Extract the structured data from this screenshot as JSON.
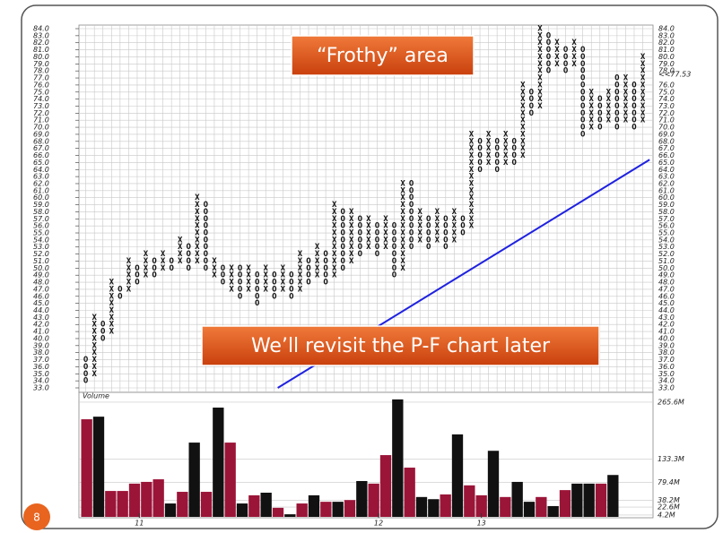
{
  "slide": {
    "number": "8"
  },
  "chart_data": [
    {
      "type": "point_and_figure",
      "box_size": 1,
      "x_color": "#111111",
      "o_color": "#111111",
      "ylim": [
        33,
        84
      ],
      "xlim": [
        -0.8,
        66.2
      ],
      "yticks": [
        {
          "value": 33,
          "label": "33.0"
        },
        {
          "value": 34,
          "label": "34.0"
        },
        {
          "value": 35,
          "label": "35.0"
        },
        {
          "value": 36,
          "label": "36.0"
        },
        {
          "value": 37,
          "label": "37.0"
        },
        {
          "value": 38,
          "label": "38.0"
        },
        {
          "value": 39,
          "label": "39.0"
        },
        {
          "value": 40,
          "label": "40.0"
        },
        {
          "value": 41,
          "label": "41.0"
        },
        {
          "value": 42,
          "label": "42.0"
        },
        {
          "value": 43,
          "label": "43.0"
        },
        {
          "value": 44,
          "label": "44.0"
        },
        {
          "value": 45,
          "label": "45.0"
        },
        {
          "value": 46,
          "label": "46.0"
        },
        {
          "value": 47,
          "label": "47.0"
        },
        {
          "value": 48,
          "label": "48.0"
        },
        {
          "value": 49,
          "label": "49.0"
        },
        {
          "value": 50,
          "label": "50.0"
        },
        {
          "value": 51,
          "label": "51.0"
        },
        {
          "value": 52,
          "label": "52.0"
        },
        {
          "value": 53,
          "label": "53.0"
        },
        {
          "value": 54,
          "label": "54.0"
        },
        {
          "value": 55,
          "label": "55.0"
        },
        {
          "value": 56,
          "label": "56.0"
        },
        {
          "value": 57,
          "label": "57.0"
        },
        {
          "value": 58,
          "label": "58.0"
        },
        {
          "value": 59,
          "label": "59.0"
        },
        {
          "value": 60,
          "label": "60.0"
        },
        {
          "value": 61,
          "label": "61.0"
        },
        {
          "value": 62,
          "label": "62.0"
        },
        {
          "value": 63,
          "label": "63.0"
        },
        {
          "value": 64,
          "label": "64.0"
        },
        {
          "value": 65,
          "label": "65.0"
        },
        {
          "value": 66,
          "label": "66.0"
        },
        {
          "value": 67,
          "label": "67.0"
        },
        {
          "value": 68,
          "label": "68.0"
        },
        {
          "value": 69,
          "label": "69.0"
        },
        {
          "value": 70,
          "label": "70.0"
        },
        {
          "value": 71,
          "label": "71.0"
        },
        {
          "value": 72,
          "label": "72.0"
        },
        {
          "value": 73,
          "label": "73.0"
        },
        {
          "value": 74,
          "label": "74.0"
        },
        {
          "value": 75,
          "label": "75.0"
        },
        {
          "value": 76,
          "label": "76.0"
        },
        {
          "value": 77,
          "label": "77.0"
        },
        {
          "value": 78,
          "label": "78.0"
        },
        {
          "value": 79,
          "label": "79.0"
        },
        {
          "value": 80,
          "label": "80.0"
        },
        {
          "value": 81,
          "label": "81.0"
        },
        {
          "value": 82,
          "label": "82.0"
        },
        {
          "value": 83,
          "label": "83.0"
        },
        {
          "value": 84,
          "label": "84.0"
        }
      ],
      "last_price": {
        "value": 77.53,
        "label": "<<77.53",
        "color": "#d0103a"
      },
      "columns": [
        {
          "type": "O",
          "low": 34,
          "high": 37
        },
        {
          "type": "X",
          "low": 35,
          "high": 43
        },
        {
          "type": "O",
          "low": 40,
          "high": 42
        },
        {
          "type": "X",
          "low": 41,
          "high": 48
        },
        {
          "type": "O",
          "low": 46,
          "high": 47
        },
        {
          "type": "X",
          "low": 47,
          "high": 51
        },
        {
          "type": "O",
          "low": 48,
          "high": 50
        },
        {
          "type": "X",
          "low": 49,
          "high": 52
        },
        {
          "type": "O",
          "low": 49,
          "high": 51
        },
        {
          "type": "X",
          "low": 50,
          "high": 52
        },
        {
          "type": "O",
          "low": 50,
          "high": 51
        },
        {
          "type": "X",
          "low": 51,
          "high": 54
        },
        {
          "type": "O",
          "low": 50,
          "high": 53
        },
        {
          "type": "X",
          "low": 51,
          "high": 60
        },
        {
          "type": "O",
          "low": 50,
          "high": 59
        },
        {
          "type": "X",
          "low": 49,
          "high": 51
        },
        {
          "type": "O",
          "low": 48,
          "high": 50
        },
        {
          "type": "X",
          "low": 47,
          "high": 50
        },
        {
          "type": "O",
          "low": 46,
          "high": 50
        },
        {
          "type": "X",
          "low": 47,
          "high": 50
        },
        {
          "type": "O",
          "low": 45,
          "high": 49
        },
        {
          "type": "X",
          "low": 47,
          "high": 50
        },
        {
          "type": "O",
          "low": 46,
          "high": 49
        },
        {
          "type": "X",
          "low": 47,
          "high": 50
        },
        {
          "type": "O",
          "low": 46,
          "high": 49
        },
        {
          "type": "X",
          "low": 47,
          "high": 52
        },
        {
          "type": "O",
          "low": 48,
          "high": 51
        },
        {
          "type": "X",
          "low": 49,
          "high": 53
        },
        {
          "type": "O",
          "low": 48,
          "high": 52
        },
        {
          "type": "X",
          "low": 49,
          "high": 59
        },
        {
          "type": "O",
          "low": 50,
          "high": 58
        },
        {
          "type": "X",
          "low": 51,
          "high": 58
        },
        {
          "type": "O",
          "low": 52,
          "high": 57
        },
        {
          "type": "X",
          "low": 53,
          "high": 57
        },
        {
          "type": "O",
          "low": 52,
          "high": 56
        },
        {
          "type": "X",
          "low": 53,
          "high": 57
        },
        {
          "type": "O",
          "low": 49,
          "high": 56
        },
        {
          "type": "X",
          "low": 50,
          "high": 62
        },
        {
          "type": "O",
          "low": 53,
          "high": 62
        },
        {
          "type": "X",
          "low": 54,
          "high": 58
        },
        {
          "type": "O",
          "low": 53,
          "high": 57
        },
        {
          "type": "X",
          "low": 54,
          "high": 58
        },
        {
          "type": "O",
          "low": 53,
          "high": 57
        },
        {
          "type": "X",
          "low": 54,
          "high": 58
        },
        {
          "type": "O",
          "low": 55,
          "high": 57
        },
        {
          "type": "X",
          "low": 56,
          "high": 69
        },
        {
          "type": "O",
          "low": 64,
          "high": 68
        },
        {
          "type": "X",
          "low": 65,
          "high": 69
        },
        {
          "type": "O",
          "low": 64,
          "high": 68
        },
        {
          "type": "X",
          "low": 65,
          "high": 69
        },
        {
          "type": "O",
          "low": 65,
          "high": 68
        },
        {
          "type": "X",
          "low": 66,
          "high": 76
        },
        {
          "type": "O",
          "low": 72,
          "high": 75
        },
        {
          "type": "X",
          "low": 73,
          "high": 84
        },
        {
          "type": "O",
          "low": 78,
          "high": 83
        },
        {
          "type": "X",
          "low": 79,
          "high": 82
        },
        {
          "type": "O",
          "low": 78,
          "high": 81
        },
        {
          "type": "X",
          "low": 79,
          "high": 82
        },
        {
          "type": "O",
          "low": 69,
          "high": 81
        },
        {
          "type": "X",
          "low": 70,
          "high": 75
        },
        {
          "type": "O",
          "low": 70,
          "high": 74
        },
        {
          "type": "X",
          "low": 71,
          "high": 75
        },
        {
          "type": "O",
          "low": 70,
          "high": 77
        },
        {
          "type": "X",
          "low": 71,
          "high": 77
        },
        {
          "type": "O",
          "low": 70,
          "high": 76
        },
        {
          "type": "X",
          "low": 71,
          "high": 80
        }
      ],
      "trendline": {
        "x": [
          22.4,
          65.8
        ],
        "y": [
          33,
          65.4
        ],
        "color": "#1f22e0"
      },
      "annotations": [
        "“Frothy” area",
        "We’ll revisit the P-F chart later"
      ]
    },
    {
      "type": "bar",
      "label": "Volume",
      "ylim": [
        0,
        280
      ],
      "yticks": [
        {
          "value": 265.6,
          "label": "265.6M"
        },
        {
          "value": 133.3,
          "label": "133.3M"
        },
        {
          "value": 79.4,
          "label": "79.4M"
        },
        {
          "value": 38.2,
          "label": "38.2M"
        },
        {
          "value": 22.6,
          "label": "22.6M"
        },
        {
          "value": 4.2,
          "label": "4.2M"
        }
      ],
      "xticks": [
        {
          "value": 4.4,
          "label": "11"
        },
        {
          "value": 24.4,
          "label": "12"
        },
        {
          "value": 33,
          "label": "13"
        }
      ],
      "values": [
        226,
        232,
        60,
        60,
        77,
        81,
        87,
        31,
        58,
        172,
        58,
        253,
        172,
        31,
        50,
        56,
        21,
        6,
        31,
        50,
        35,
        35,
        39,
        83,
        77,
        143,
        272,
        114,
        46,
        41,
        52,
        191,
        73,
        50,
        153,
        46,
        81,
        35,
        46,
        25,
        62,
        77,
        77,
        77,
        97
      ],
      "colors": [
        "#9b1538",
        "#111111",
        "#9b1538",
        "#9b1538",
        "#9b1538",
        "#9b1538",
        "#9b1538",
        "#111111",
        "#9b1538",
        "#111111",
        "#9b1538",
        "#111111",
        "#9b1538",
        "#111111",
        "#9b1538",
        "#111111",
        "#9b1538",
        "#111111",
        "#9b1538",
        "#111111",
        "#9b1538",
        "#111111",
        "#9b1538",
        "#111111",
        "#9b1538",
        "#9b1538",
        "#111111",
        "#9b1538",
        "#111111",
        "#111111",
        "#9b1538",
        "#111111",
        "#9b1538",
        "#9b1538",
        "#111111",
        "#9b1538",
        "#111111",
        "#111111",
        "#9b1538",
        "#111111",
        "#9b1538",
        "#111111",
        "#111111",
        "#9b1538",
        "#111111"
      ]
    }
  ]
}
